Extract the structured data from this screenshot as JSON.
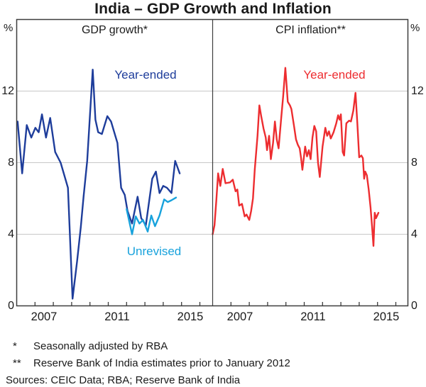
{
  "title": "India – GDP Growth and Inflation",
  "colors": {
    "dark_blue": "#1E3D9B",
    "light_blue": "#18A2DC",
    "red": "#ED2D30",
    "grid": "#C8C8C8",
    "frame": "#3D3D3D",
    "text": "#1A1A1A"
  },
  "footnotes": [
    {
      "marker": "*",
      "text": "Seasonally adjusted by RBA"
    },
    {
      "marker": "**",
      "text": "Reserve Bank of India estimates prior to January 2012"
    }
  ],
  "sources_line": "Sources:  CEIC Data; RBA; Reserve Bank of India",
  "chart_data": {
    "type": "line",
    "title": "India – GDP Growth and Inflation",
    "unit": "%",
    "ylim": [
      0,
      16
    ],
    "yticks": [
      "0",
      "4",
      "8",
      "12"
    ],
    "grid_values": [
      4,
      8,
      12
    ],
    "x_year_start": 2006,
    "x_year_end": 2016.7,
    "x_year_ticks": [
      2007,
      2008,
      2009,
      2010,
      2011,
      2012,
      2013,
      2014,
      2015,
      2016
    ],
    "xtick_labels": [
      "2007",
      "2011",
      "2015"
    ],
    "legend_position": "in-plot annotations",
    "grid": "horizontal only",
    "panels": [
      {
        "title": "GDP growth*",
        "series": [
          {
            "name": "gdp-year-ended",
            "label": "Year-ended",
            "color": "#1E3D9B",
            "points": [
              [
                2006.05,
                10.3
              ],
              [
                2006.3,
                7.4
              ],
              [
                2006.55,
                10.1
              ],
              [
                2006.8,
                9.4
              ],
              [
                2007.02,
                9.95
              ],
              [
                2007.2,
                9.7
              ],
              [
                2007.38,
                10.7
              ],
              [
                2007.6,
                9.4
              ],
              [
                2007.83,
                10.5
              ],
              [
                2008.1,
                8.6
              ],
              [
                2008.4,
                8.0
              ],
              [
                2008.8,
                6.6
              ],
              [
                2009.05,
                0.4
              ],
              [
                2009.3,
                2.5
              ],
              [
                2009.5,
                4.4
              ],
              [
                2009.65,
                6.1
              ],
              [
                2009.85,
                8.1
              ],
              [
                2010.15,
                13.2
              ],
              [
                2010.3,
                10.4
              ],
              [
                2010.45,
                9.7
              ],
              [
                2010.65,
                9.6
              ],
              [
                2010.95,
                10.6
              ],
              [
                2011.15,
                10.3
              ],
              [
                2011.5,
                9.1
              ],
              [
                2011.7,
                6.6
              ],
              [
                2011.9,
                6.2
              ],
              [
                2012.05,
                5.3
              ],
              [
                2012.3,
                4.6
              ],
              [
                2012.6,
                6.1
              ],
              [
                2012.8,
                4.9
              ],
              [
                2013.05,
                4.5
              ],
              [
                2013.4,
                7.1
              ],
              [
                2013.6,
                7.5
              ],
              [
                2013.8,
                6.3
              ],
              [
                2014.0,
                6.7
              ],
              [
                2014.2,
                6.6
              ],
              [
                2014.45,
                6.3
              ],
              [
                2014.65,
                8.1
              ],
              [
                2014.9,
                7.4
              ]
            ]
          },
          {
            "name": "gdp-unrevised",
            "label": "Unrevised",
            "color": "#18A2DC",
            "points": [
              [
                2012.0,
                5.4
              ],
              [
                2012.3,
                4.0
              ],
              [
                2012.5,
                5.0
              ],
              [
                2012.7,
                4.6
              ],
              [
                2012.9,
                4.8
              ],
              [
                2013.15,
                4.15
              ],
              [
                2013.35,
                5.05
              ],
              [
                2013.55,
                4.45
              ],
              [
                2013.8,
                5.05
              ],
              [
                2014.05,
                5.95
              ],
              [
                2014.25,
                5.8
              ],
              [
                2014.45,
                5.9
              ],
              [
                2014.7,
                6.05
              ]
            ]
          }
        ]
      },
      {
        "title": "CPI inflation**",
        "series": [
          {
            "name": "cpi-year-ended",
            "label": "Year-ended",
            "color": "#ED2D30",
            "points": [
              [
                2006.0,
                4.0
              ],
              [
                2006.1,
                4.5
              ],
              [
                2006.2,
                5.9
              ],
              [
                2006.3,
                7.4
              ],
              [
                2006.42,
                6.7
              ],
              [
                2006.55,
                7.65
              ],
              [
                2006.7,
                6.85
              ],
              [
                2006.95,
                6.9
              ],
              [
                2007.1,
                7.05
              ],
              [
                2007.25,
                6.4
              ],
              [
                2007.35,
                6.5
              ],
              [
                2007.45,
                5.6
              ],
              [
                2007.6,
                5.7
              ],
              [
                2007.75,
                5.0
              ],
              [
                2007.85,
                5.1
              ],
              [
                2008.0,
                4.8
              ],
              [
                2008.1,
                5.3
              ],
              [
                2008.2,
                6.0
              ],
              [
                2008.3,
                7.6
              ],
              [
                2008.45,
                9.5
              ],
              [
                2008.55,
                11.2
              ],
              [
                2008.65,
                10.6
              ],
              [
                2008.78,
                9.9
              ],
              [
                2008.9,
                9.4
              ],
              [
                2008.97,
                8.7
              ],
              [
                2009.08,
                9.5
              ],
              [
                2009.18,
                8.2
              ],
              [
                2009.3,
                9.1
              ],
              [
                2009.4,
                10.3
              ],
              [
                2009.5,
                9.3
              ],
              [
                2009.6,
                8.8
              ],
              [
                2009.75,
                10.6
              ],
              [
                2009.85,
                11.7
              ],
              [
                2009.97,
                13.3
              ],
              [
                2010.1,
                11.4
              ],
              [
                2010.22,
                11.2
              ],
              [
                2010.3,
                11.0
              ],
              [
                2010.45,
                10.0
              ],
              [
                2010.55,
                9.3
              ],
              [
                2010.65,
                9.0
              ],
              [
                2010.75,
                8.8
              ],
              [
                2010.82,
                8.3
              ],
              [
                2010.9,
                7.6
              ],
              [
                2011.05,
                8.9
              ],
              [
                2011.15,
                8.35
              ],
              [
                2011.25,
                8.7
              ],
              [
                2011.35,
                8.2
              ],
              [
                2011.45,
                9.4
              ],
              [
                2011.55,
                10.05
              ],
              [
                2011.65,
                9.75
              ],
              [
                2011.75,
                8.0
              ],
              [
                2011.85,
                7.2
              ],
              [
                2012.0,
                8.9
              ],
              [
                2012.15,
                9.95
              ],
              [
                2012.25,
                9.5
              ],
              [
                2012.35,
                9.75
              ],
              [
                2012.45,
                9.35
              ],
              [
                2012.6,
                9.7
              ],
              [
                2012.75,
                10.2
              ],
              [
                2012.85,
                10.65
              ],
              [
                2012.93,
                10.4
              ],
              [
                2013.0,
                10.7
              ],
              [
                2013.1,
                8.6
              ],
              [
                2013.18,
                8.4
              ],
              [
                2013.3,
                10.2
              ],
              [
                2013.45,
                10.35
              ],
              [
                2013.55,
                10.3
              ],
              [
                2013.68,
                10.9
              ],
              [
                2013.8,
                11.9
              ],
              [
                2013.9,
                10.2
              ],
              [
                2014.0,
                8.3
              ],
              [
                2014.12,
                8.4
              ],
              [
                2014.2,
                8.25
              ],
              [
                2014.27,
                7.1
              ],
              [
                2014.33,
                7.5
              ],
              [
                2014.42,
                7.3
              ],
              [
                2014.52,
                6.5
              ],
              [
                2014.62,
                5.5
              ],
              [
                2014.7,
                4.45
              ],
              [
                2014.78,
                3.35
              ],
              [
                2014.85,
                5.2
              ],
              [
                2014.92,
                4.9
              ],
              [
                2015.05,
                5.2
              ]
            ]
          }
        ]
      }
    ]
  }
}
